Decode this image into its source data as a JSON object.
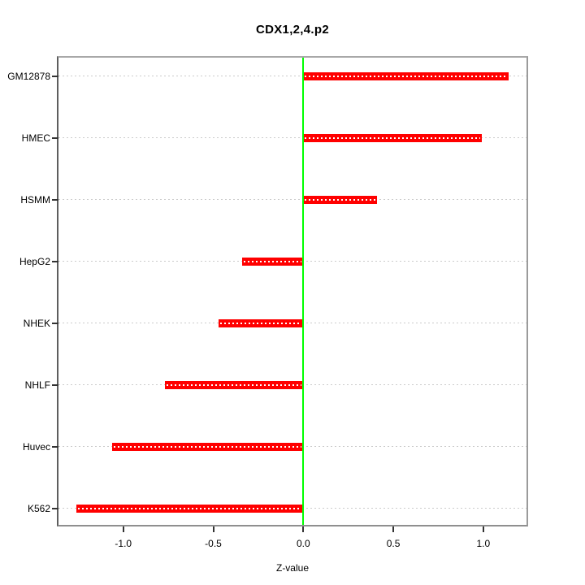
{
  "chart_data": {
    "type": "bar",
    "orientation": "horizontal",
    "title": "CDX1,2,4.p2",
    "xlabel": "Z-value",
    "ylabel": "",
    "categories": [
      "GM12878",
      "HMEC",
      "HSMM",
      "HepG2",
      "NHEK",
      "NHLF",
      "Huvec",
      "K562"
    ],
    "values": [
      1.14,
      0.99,
      0.41,
      -0.34,
      -0.47,
      -0.77,
      -1.06,
      -1.26
    ],
    "xlim": [
      -1.36,
      1.24
    ],
    "x_ticks": [
      {
        "value": -1.0,
        "label": "-1.0"
      },
      {
        "value": -0.5,
        "label": "-0.5"
      },
      {
        "value": 0.0,
        "label": "0.0"
      },
      {
        "value": 0.5,
        "label": "0.5"
      },
      {
        "value": 1.0,
        "label": "1.0"
      }
    ],
    "zero_line_value": 0.0,
    "grid": "dotted-horizontal",
    "legend": "none",
    "colors": {
      "bar": "#ff0000",
      "zero_line": "#00ff00",
      "grid_line": "#cbcbcb",
      "bar_grid_overlay": "#ffffff",
      "box_border": "#999999",
      "axis_tick": "#333333",
      "text": "#000000",
      "background": "#ffffff"
    }
  }
}
